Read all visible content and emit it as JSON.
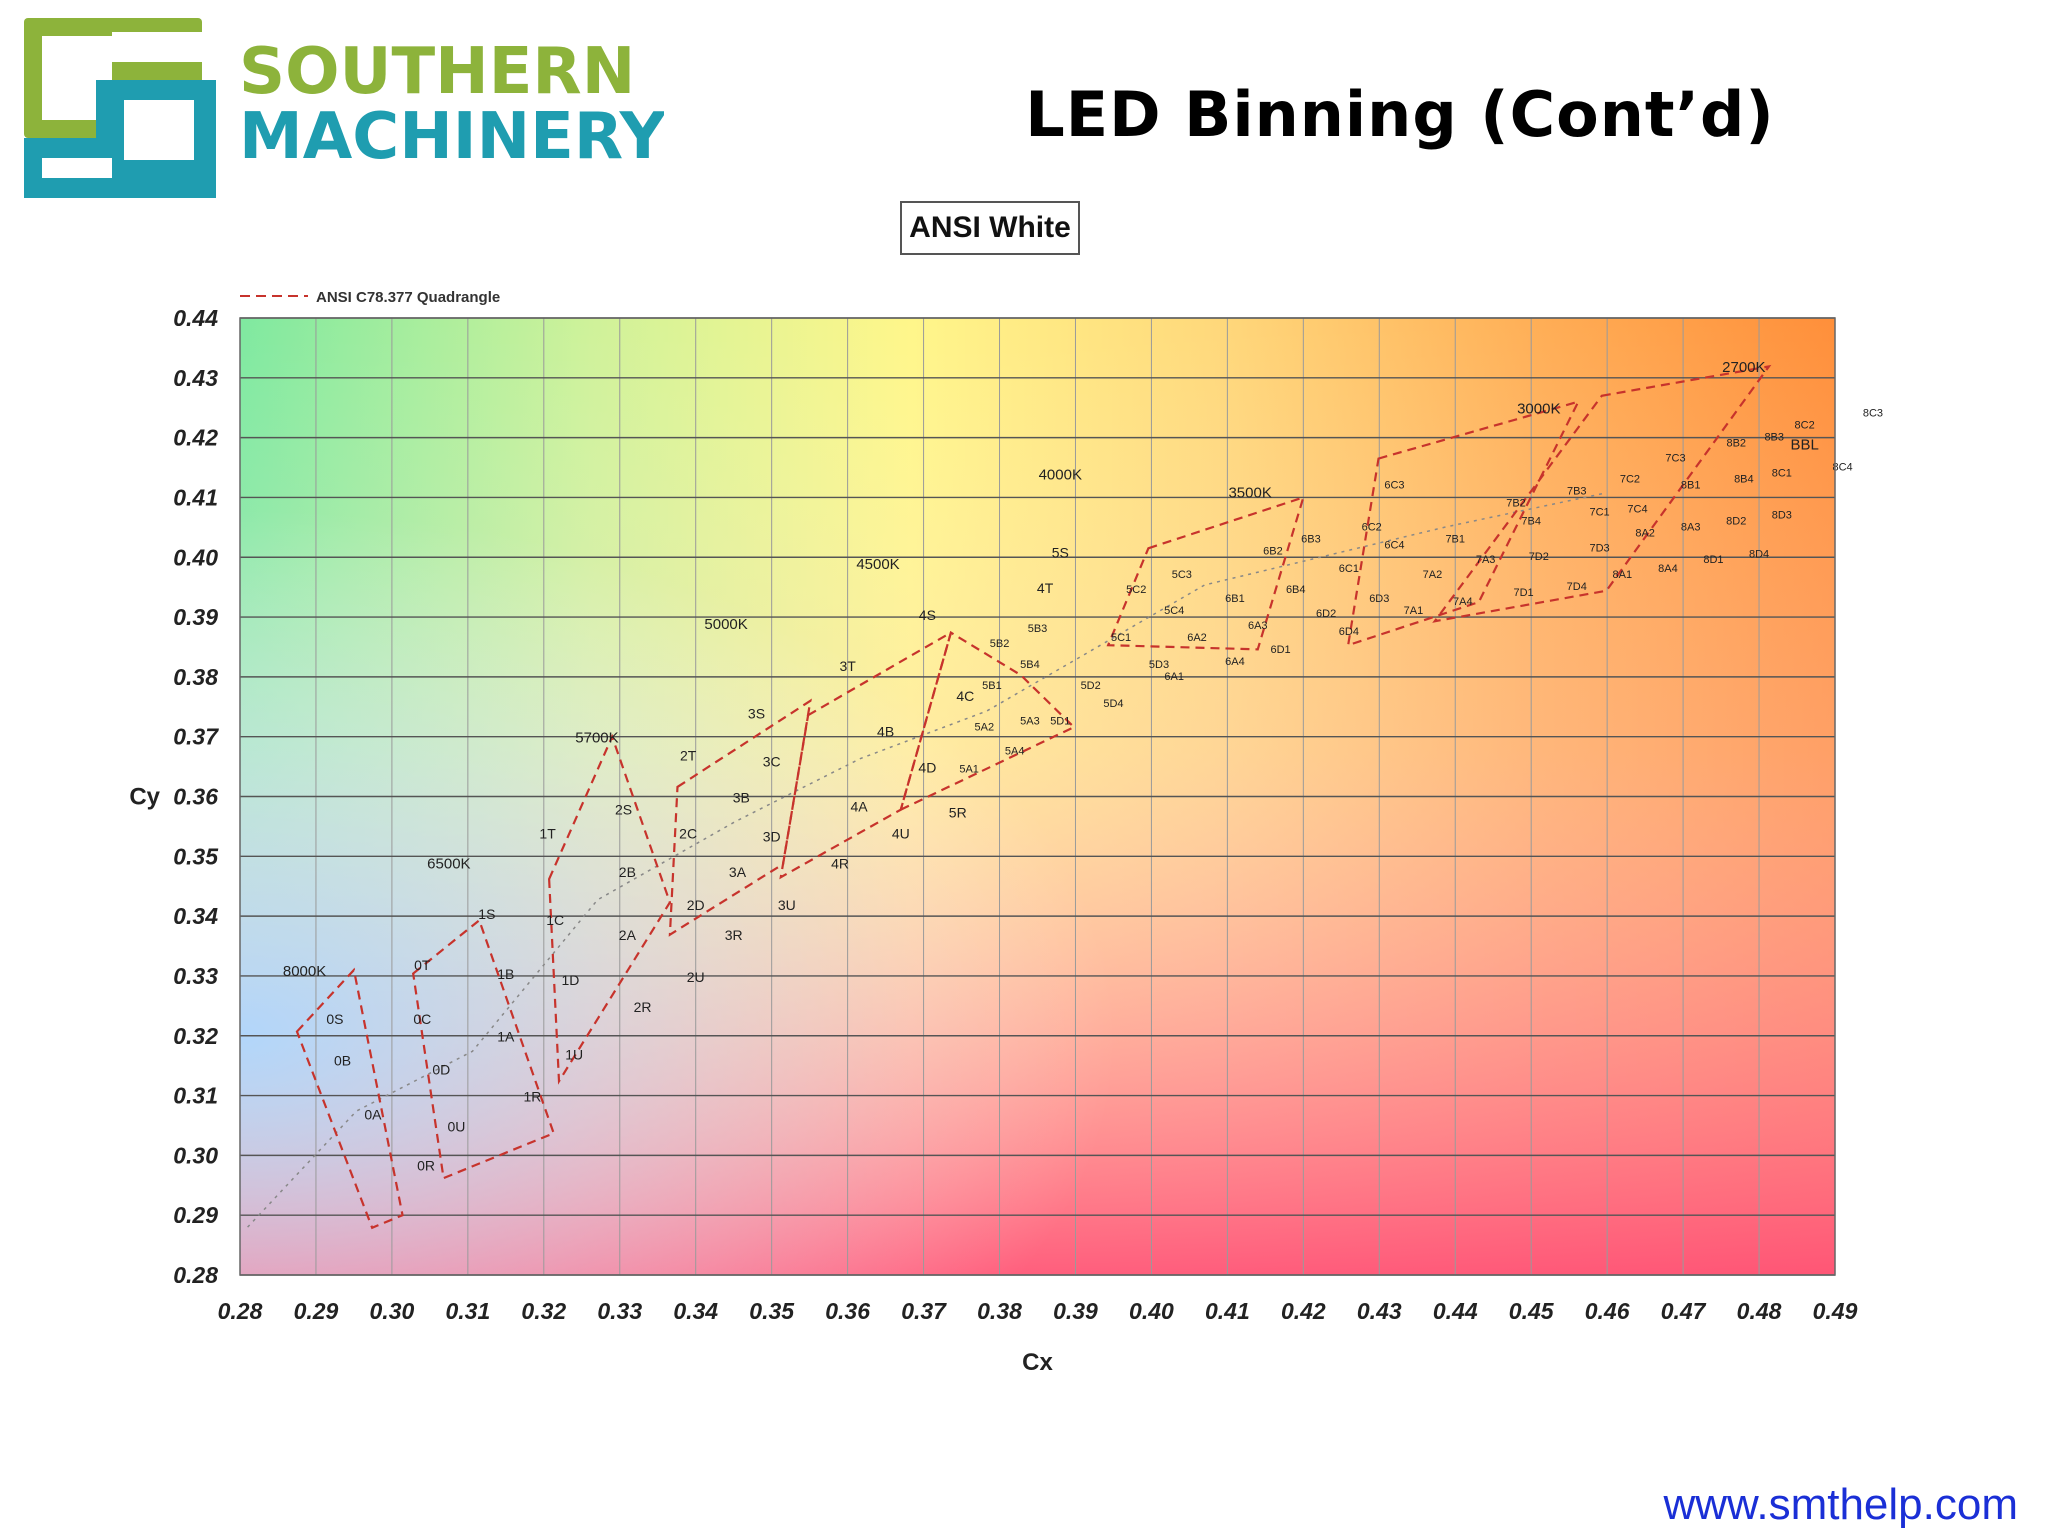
{
  "brand": {
    "name_line1": "SOUTHERN",
    "name_line2": "MACHINERY",
    "color_green": "#8db33b",
    "color_teal": "#1f9db0"
  },
  "slide_title": "LED Binning (Cont’d)",
  "footer_url": "www.smthelp.com",
  "chart_data": {
    "type": "scatter",
    "title": "ANSI White",
    "xlabel": "Cx",
    "ylabel": "Cy",
    "xlim": [
      0.28,
      0.49
    ],
    "ylim": [
      0.28,
      0.44
    ],
    "x_ticks": [
      "0.28",
      "0.29",
      "0.30",
      "0.31",
      "0.32",
      "0.33",
      "0.34",
      "0.35",
      "0.36",
      "0.37",
      "0.38",
      "0.39",
      "0.40",
      "0.41",
      "0.42",
      "0.43",
      "0.44",
      "0.45",
      "0.46",
      "0.47",
      "0.48",
      "0.49"
    ],
    "y_ticks": [
      "0.28",
      "0.29",
      "0.30",
      "0.31",
      "0.32",
      "0.33",
      "0.34",
      "0.35",
      "0.36",
      "0.37",
      "0.38",
      "0.39",
      "0.40",
      "0.41",
      "0.42",
      "0.43",
      "0.44"
    ],
    "grid": true,
    "legend": {
      "entries": [
        "ANSI C78.377 Quadrangle"
      ],
      "position": "top-left"
    },
    "quadrangles": [
      {
        "cct": "8000K",
        "outline": [
          [
            0.2875,
            0.3207
          ],
          [
            0.295,
            0.331
          ],
          [
            0.3014,
            0.29
          ],
          [
            0.2974,
            0.2879
          ]
        ]
      },
      {
        "cct": "6500K",
        "outline": [
          [
            0.3028,
            0.3304
          ],
          [
            0.3115,
            0.3393
          ],
          [
            0.3213,
            0.3037
          ],
          [
            0.3068,
            0.2962
          ]
        ]
      },
      {
        "cct": "5700K",
        "outline": [
          [
            0.3207,
            0.3462
          ],
          [
            0.329,
            0.37
          ],
          [
            0.3366,
            0.3423
          ],
          [
            0.322,
            0.3124
          ]
        ]
      },
      {
        "cct": "5000K",
        "outline": [
          [
            0.3376,
            0.3616
          ],
          [
            0.3551,
            0.376
          ],
          [
            0.3515,
            0.3487
          ],
          [
            0.3366,
            0.3369
          ]
        ]
      },
      {
        "cct": "4500K",
        "outline": [
          [
            0.3548,
            0.3736
          ],
          [
            0.3736,
            0.3874
          ],
          [
            0.367,
            0.3578
          ],
          [
            0.3512,
            0.3465
          ]
        ]
      },
      {
        "cct": "4000K",
        "outline": [
          [
            0.367,
            0.3578
          ],
          [
            0.3898,
            0.3716
          ],
          [
            0.3828,
            0.3803
          ],
          [
            0.3736,
            0.3874
          ]
        ]
      },
      {
        "cct": "3500K",
        "outline": [
          [
            0.3996,
            0.4015
          ],
          [
            0.42,
            0.41
          ],
          [
            0.414,
            0.3846
          ],
          [
            0.3943,
            0.3853
          ]
        ]
      },
      {
        "cct": "3000K",
        "outline": [
          [
            0.4299,
            0.4165
          ],
          [
            0.4562,
            0.426
          ],
          [
            0.4431,
            0.3925
          ],
          [
            0.4259,
            0.3853
          ]
        ]
      },
      {
        "cct": "2700K",
        "outline": [
          [
            0.4593,
            0.427
          ],
          [
            0.4813,
            0.4319
          ],
          [
            0.4599,
            0.3944
          ],
          [
            0.4373,
            0.3893
          ]
        ]
      }
    ],
    "cct_labels": [
      {
        "text": "8000K",
        "x": 0.2885,
        "y": 0.33
      },
      {
        "text": "6500K",
        "x": 0.3075,
        "y": 0.348
      },
      {
        "text": "5700K",
        "x": 0.327,
        "y": 0.369
      },
      {
        "text": "5000K",
        "x": 0.344,
        "y": 0.388
      },
      {
        "text": "4500K",
        "x": 0.364,
        "y": 0.398
      },
      {
        "text": "4000K",
        "x": 0.388,
        "y": 0.413
      },
      {
        "text": "3500K",
        "x": 0.413,
        "y": 0.41
      },
      {
        "text": "3000K",
        "x": 0.451,
        "y": 0.424
      },
      {
        "text": "2700K",
        "x": 0.478,
        "y": 0.431
      },
      {
        "text": "BBL",
        "x": 0.486,
        "y": 0.418
      }
    ],
    "bin_labels": [
      {
        "text": "0S",
        "x": 0.2925,
        "y": 0.322
      },
      {
        "text": "0T",
        "x": 0.304,
        "y": 0.331
      },
      {
        "text": "0C",
        "x": 0.304,
        "y": 0.322
      },
      {
        "text": "0B",
        "x": 0.2935,
        "y": 0.315
      },
      {
        "text": "0D",
        "x": 0.3065,
        "y": 0.3135
      },
      {
        "text": "0A",
        "x": 0.2975,
        "y": 0.306
      },
      {
        "text": "0U",
        "x": 0.3085,
        "y": 0.304
      },
      {
        "text": "0R",
        "x": 0.3045,
        "y": 0.2975
      },
      {
        "text": "1S",
        "x": 0.3125,
        "y": 0.3395
      },
      {
        "text": "1T",
        "x": 0.3205,
        "y": 0.353
      },
      {
        "text": "1C",
        "x": 0.3215,
        "y": 0.3385
      },
      {
        "text": "1B",
        "x": 0.315,
        "y": 0.3295
      },
      {
        "text": "1D",
        "x": 0.3235,
        "y": 0.3285
      },
      {
        "text": "1A",
        "x": 0.315,
        "y": 0.319
      },
      {
        "text": "1U",
        "x": 0.324,
        "y": 0.316
      },
      {
        "text": "1R",
        "x": 0.3185,
        "y": 0.309
      },
      {
        "text": "2S",
        "x": 0.3305,
        "y": 0.357
      },
      {
        "text": "2T",
        "x": 0.339,
        "y": 0.366
      },
      {
        "text": "2C",
        "x": 0.339,
        "y": 0.353
      },
      {
        "text": "2B",
        "x": 0.331,
        "y": 0.3465
      },
      {
        "text": "2D",
        "x": 0.34,
        "y": 0.341
      },
      {
        "text": "2A",
        "x": 0.331,
        "y": 0.336
      },
      {
        "text": "2U",
        "x": 0.34,
        "y": 0.329
      },
      {
        "text": "2R",
        "x": 0.333,
        "y": 0.324
      },
      {
        "text": "3S",
        "x": 0.348,
        "y": 0.373
      },
      {
        "text": "3T",
        "x": 0.36,
        "y": 0.381
      },
      {
        "text": "3C",
        "x": 0.35,
        "y": 0.365
      },
      {
        "text": "3B",
        "x": 0.346,
        "y": 0.359
      },
      {
        "text": "3D",
        "x": 0.35,
        "y": 0.3525
      },
      {
        "text": "3A",
        "x": 0.3455,
        "y": 0.3465
      },
      {
        "text": "3U",
        "x": 0.352,
        "y": 0.341
      },
      {
        "text": "3R",
        "x": 0.345,
        "y": 0.336
      },
      {
        "text": "4S",
        "x": 0.3705,
        "y": 0.3895
      },
      {
        "text": "4T",
        "x": 0.386,
        "y": 0.394
      },
      {
        "text": "4C",
        "x": 0.3755,
        "y": 0.376
      },
      {
        "text": "4B",
        "x": 0.365,
        "y": 0.37
      },
      {
        "text": "4D",
        "x": 0.3705,
        "y": 0.364
      },
      {
        "text": "4A",
        "x": 0.3615,
        "y": 0.3575
      },
      {
        "text": "4U",
        "x": 0.367,
        "y": 0.353
      },
      {
        "text": "4R",
        "x": 0.359,
        "y": 0.348
      },
      {
        "text": "5S",
        "x": 0.388,
        "y": 0.4
      },
      {
        "text": "5R",
        "x": 0.3745,
        "y": 0.3565
      },
      {
        "text": "5B2",
        "x": 0.38,
        "y": 0.385
      },
      {
        "text": "5B3",
        "x": 0.385,
        "y": 0.3875
      },
      {
        "text": "5C2",
        "x": 0.398,
        "y": 0.394
      },
      {
        "text": "5C3",
        "x": 0.404,
        "y": 0.3965
      },
      {
        "text": "5B1",
        "x": 0.379,
        "y": 0.378
      },
      {
        "text": "5B4",
        "x": 0.384,
        "y": 0.3815
      },
      {
        "text": "5C1",
        "x": 0.396,
        "y": 0.386
      },
      {
        "text": "5C4",
        "x": 0.403,
        "y": 0.3905
      },
      {
        "text": "5A2",
        "x": 0.378,
        "y": 0.371
      },
      {
        "text": "5A3",
        "x": 0.384,
        "y": 0.372
      },
      {
        "text": "5D2",
        "x": 0.392,
        "y": 0.378
      },
      {
        "text": "5D3",
        "x": 0.401,
        "y": 0.3815
      },
      {
        "text": "5A1",
        "x": 0.376,
        "y": 0.364
      },
      {
        "text": "5A4",
        "x": 0.382,
        "y": 0.367
      },
      {
        "text": "5D1",
        "x": 0.388,
        "y": 0.372
      },
      {
        "text": "5D4",
        "x": 0.395,
        "y": 0.375
      },
      {
        "text": "6B2",
        "x": 0.416,
        "y": 0.4005
      },
      {
        "text": "6B3",
        "x": 0.421,
        "y": 0.4025
      },
      {
        "text": "6C2",
        "x": 0.429,
        "y": 0.4045
      },
      {
        "text": "6C3",
        "x": 0.432,
        "y": 0.4115
      },
      {
        "text": "6B1",
        "x": 0.411,
        "y": 0.3925
      },
      {
        "text": "6B4",
        "x": 0.419,
        "y": 0.394
      },
      {
        "text": "6C1",
        "x": 0.426,
        "y": 0.3975
      },
      {
        "text": "6C4",
        "x": 0.432,
        "y": 0.4015
      },
      {
        "text": "6A2",
        "x": 0.406,
        "y": 0.386
      },
      {
        "text": "6A3",
        "x": 0.414,
        "y": 0.388
      },
      {
        "text": "6D2",
        "x": 0.423,
        "y": 0.39
      },
      {
        "text": "6D3",
        "x": 0.43,
        "y": 0.3925
      },
      {
        "text": "6A1",
        "x": 0.403,
        "y": 0.3795
      },
      {
        "text": "6A4",
        "x": 0.411,
        "y": 0.382
      },
      {
        "text": "6D1",
        "x": 0.417,
        "y": 0.384
      },
      {
        "text": "6D4",
        "x": 0.426,
        "y": 0.387
      },
      {
        "text": "7B2",
        "x": 0.448,
        "y": 0.4085
      },
      {
        "text": "7B3",
        "x": 0.456,
        "y": 0.4105
      },
      {
        "text": "7C2",
        "x": 0.463,
        "y": 0.4125
      },
      {
        "text": "7C3",
        "x": 0.469,
        "y": 0.416
      },
      {
        "text": "7B1",
        "x": 0.44,
        "y": 0.4025
      },
      {
        "text": "7B4",
        "x": 0.45,
        "y": 0.4055
      },
      {
        "text": "7C1",
        "x": 0.459,
        "y": 0.407
      },
      {
        "text": "7C4",
        "x": 0.464,
        "y": 0.4075
      },
      {
        "text": "7A2",
        "x": 0.437,
        "y": 0.3965
      },
      {
        "text": "7A3",
        "x": 0.444,
        "y": 0.399
      },
      {
        "text": "7D2",
        "x": 0.451,
        "y": 0.3995
      },
      {
        "text": "7D3",
        "x": 0.459,
        "y": 0.401
      },
      {
        "text": "7A1",
        "x": 0.4345,
        "y": 0.3905
      },
      {
        "text": "7A4",
        "x": 0.441,
        "y": 0.392
      },
      {
        "text": "7D1",
        "x": 0.449,
        "y": 0.3935
      },
      {
        "text": "7D4",
        "x": 0.456,
        "y": 0.3945
      },
      {
        "text": "8B2",
        "x": 0.477,
        "y": 0.4185
      },
      {
        "text": "8B3",
        "x": 0.482,
        "y": 0.4195
      },
      {
        "text": "8C2",
        "x": 0.486,
        "y": 0.4215
      },
      {
        "text": "8C3",
        "x": 0.495,
        "y": 0.4235
      },
      {
        "text": "8B1",
        "x": 0.471,
        "y": 0.4115
      },
      {
        "text": "8B4",
        "x": 0.478,
        "y": 0.4125
      },
      {
        "text": "8C1",
        "x": 0.483,
        "y": 0.4135
      },
      {
        "text": "8C4",
        "x": 0.491,
        "y": 0.4145
      },
      {
        "text": "8A2",
        "x": 0.465,
        "y": 0.4035
      },
      {
        "text": "8A3",
        "x": 0.471,
        "y": 0.4045
      },
      {
        "text": "8D2",
        "x": 0.477,
        "y": 0.4055
      },
      {
        "text": "8D3",
        "x": 0.483,
        "y": 0.4065
      },
      {
        "text": "8A1",
        "x": 0.462,
        "y": 0.3965
      },
      {
        "text": "8A4",
        "x": 0.468,
        "y": 0.3975
      },
      {
        "text": "8D1",
        "x": 0.474,
        "y": 0.399
      },
      {
        "text": "8D4",
        "x": 0.48,
        "y": 0.4
      }
    ]
  }
}
